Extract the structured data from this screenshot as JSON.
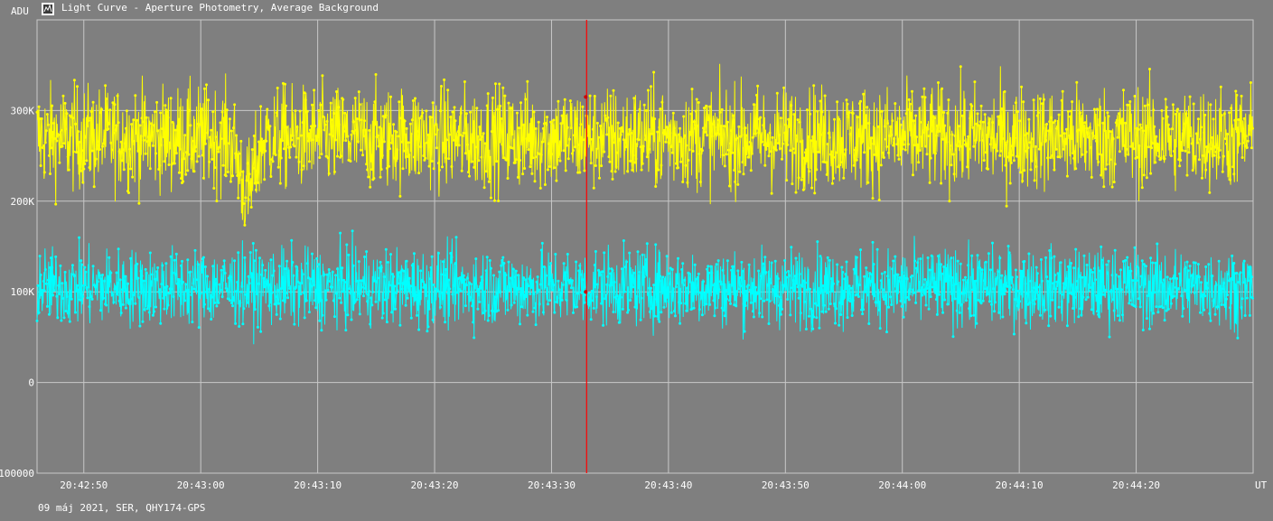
{
  "chart_data": {
    "type": "line",
    "title": "Light Curve - Aperture Photometry, Average Background",
    "ylabel": "ADU",
    "xlabel": "UT",
    "subtitle": "09 máj 2021, SER, QHY174-GPS",
    "x_range": [
      "20:42:46",
      "20:44:30"
    ],
    "ylim": [
      -100000,
      400000
    ],
    "y_ticks": [
      {
        "value": 300000,
        "label": "300K"
      },
      {
        "value": 200000,
        "label": "200K"
      },
      {
        "value": 100000,
        "label": "100K"
      },
      {
        "value": 0,
        "label": "0"
      },
      {
        "value": -100000,
        "label": "-100000"
      }
    ],
    "x_ticks": [
      "20:42:50",
      "20:43:00",
      "20:43:10",
      "20:43:20",
      "20:43:30",
      "20:43:40",
      "20:43:50",
      "20:44:00",
      "20:44:10",
      "20:44:20"
    ],
    "cursor_time": "20:43:33",
    "grid": true,
    "series": [
      {
        "color": "#ffff00",
        "mean": 270000,
        "spread": 40000,
        "min": 155000,
        "max": 375000,
        "dip": {
          "time": "20:43:04",
          "min": 160000
        }
      },
      {
        "color": "#00ffff",
        "mean": 105000,
        "spread": 30000,
        "min": -5000,
        "max": 185000
      }
    ],
    "colors": {
      "background": "#7f7f7f",
      "grid": "#c8c8c8",
      "cursor": "#ff0000",
      "text": "#ffffff"
    }
  }
}
